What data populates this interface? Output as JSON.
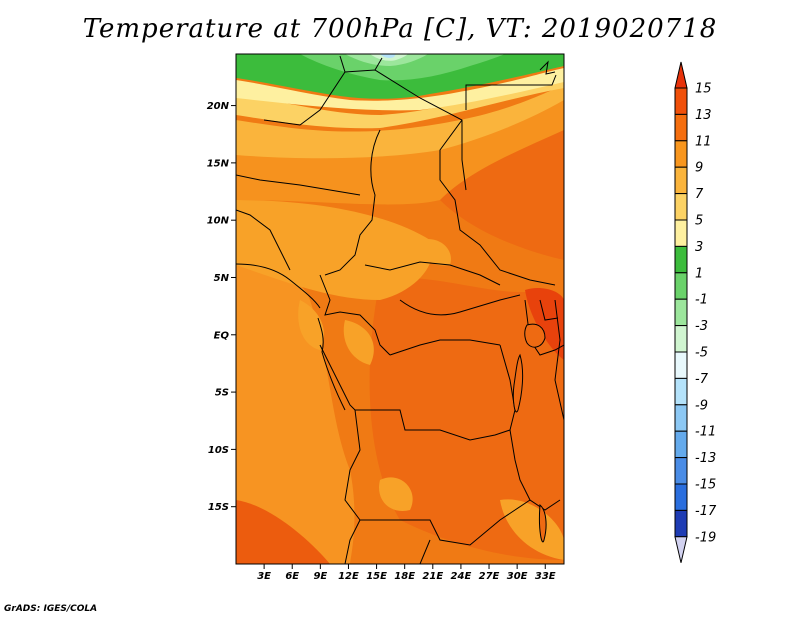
{
  "title": "Temperature at 700hPa [C], VT: 2019020718",
  "credit": "GrADS: IGES/COLA",
  "map": {
    "lon_range": [
      0,
      35
    ],
    "lat_range": [
      -20,
      24.5
    ],
    "lat_ticks": [
      {
        "value": 20,
        "label": "20N"
      },
      {
        "value": 15,
        "label": "15N"
      },
      {
        "value": 10,
        "label": "10N"
      },
      {
        "value": 5,
        "label": "5N"
      },
      {
        "value": 0,
        "label": "EQ"
      },
      {
        "value": -5,
        "label": "5S"
      },
      {
        "value": -10,
        "label": "10S"
      },
      {
        "value": -15,
        "label": "15S"
      }
    ],
    "lon_ticks": [
      {
        "value": 3,
        "label": "3E"
      },
      {
        "value": 6,
        "label": "6E"
      },
      {
        "value": 9,
        "label": "9E"
      },
      {
        "value": 12,
        "label": "12E"
      },
      {
        "value": 15,
        "label": "15E"
      },
      {
        "value": 18,
        "label": "18E"
      },
      {
        "value": 21,
        "label": "21E"
      },
      {
        "value": 24,
        "label": "24E"
      },
      {
        "value": 27,
        "label": "27E"
      },
      {
        "value": 30,
        "label": "30E"
      },
      {
        "value": 33,
        "label": "33E"
      }
    ]
  },
  "colorbar": {
    "levels": [
      {
        "label": "15",
        "color": "#e8320a"
      },
      {
        "label": "13",
        "color": "#f0500a"
      },
      {
        "label": "11",
        "color": "#f56e0f"
      },
      {
        "label": "9",
        "color": "#f8961e"
      },
      {
        "label": "7",
        "color": "#fab43c"
      },
      {
        "label": "5",
        "color": "#fcd264"
      },
      {
        "label": "3",
        "color": "#fef0a0"
      },
      {
        "label": "1",
        "color": "#3cbc3c"
      },
      {
        "label": "-1",
        "color": "#6ad26a"
      },
      {
        "label": "-3",
        "color": "#9ce69c"
      },
      {
        "label": "-5",
        "color": "#d0f5d0"
      },
      {
        "label": "-7",
        "color": "#e8f8fc"
      },
      {
        "label": "-9",
        "color": "#b4e2fa"
      },
      {
        "label": "-11",
        "color": "#8cc8f4"
      },
      {
        "label": "-13",
        "color": "#64aaec"
      },
      {
        "label": "-15",
        "color": "#4a8ce6"
      },
      {
        "label": "-17",
        "color": "#2a6ede"
      },
      {
        "label": "-19",
        "color": "#1450c8"
      }
    ],
    "top_arrow_color": "#e8320a",
    "mid_colors": [
      "#1e3cb4",
      "#0a1e8c"
    ],
    "bottom_arrow_color": "#d2d2f0"
  }
}
